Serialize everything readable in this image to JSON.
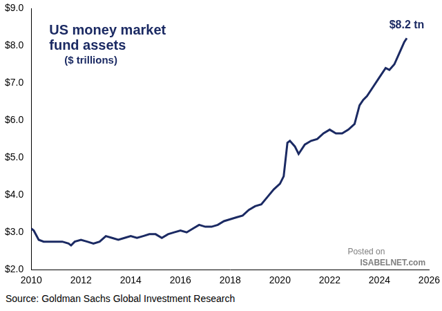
{
  "chart_data": {
    "type": "line",
    "title": "US money market fund assets",
    "subtitle": "($ trillions)",
    "annotations": [
      {
        "text": "$8.2 tn"
      }
    ],
    "watermark": [
      "Posted on",
      "ISABELNET.com"
    ],
    "source": "Source: Goldman Sachs Global Investment Research",
    "color": "#1b2a63",
    "grid": false,
    "x": [
      2010.0,
      2010.1,
      2010.3,
      2010.5,
      2010.75,
      2011.0,
      2011.25,
      2011.5,
      2011.6,
      2011.75,
      2012.0,
      2012.25,
      2012.5,
      2012.75,
      2013.0,
      2013.25,
      2013.5,
      2013.75,
      2014.0,
      2014.25,
      2014.5,
      2014.75,
      2015.0,
      2015.25,
      2015.5,
      2015.75,
      2016.0,
      2016.25,
      2016.5,
      2016.75,
      2017.0,
      2017.25,
      2017.5,
      2017.75,
      2018.0,
      2018.25,
      2018.5,
      2018.75,
      2019.0,
      2019.25,
      2019.5,
      2019.75,
      2020.0,
      2020.15,
      2020.3,
      2020.4,
      2020.6,
      2020.75,
      2021.0,
      2021.25,
      2021.5,
      2021.75,
      2022.0,
      2022.25,
      2022.5,
      2022.75,
      2023.0,
      2023.2,
      2023.35,
      2023.5,
      2023.75,
      2024.0,
      2024.25,
      2024.4,
      2024.6,
      2024.8,
      2025.0,
      2025.1
    ],
    "values": [
      3.1,
      3.05,
      2.8,
      2.75,
      2.75,
      2.75,
      2.75,
      2.7,
      2.65,
      2.75,
      2.8,
      2.75,
      2.7,
      2.75,
      2.9,
      2.85,
      2.8,
      2.85,
      2.9,
      2.85,
      2.9,
      2.95,
      2.95,
      2.85,
      2.95,
      3.0,
      3.05,
      3.0,
      3.1,
      3.2,
      3.15,
      3.15,
      3.2,
      3.3,
      3.35,
      3.4,
      3.45,
      3.6,
      3.7,
      3.75,
      3.95,
      4.15,
      4.3,
      4.5,
      5.4,
      5.45,
      5.3,
      5.1,
      5.35,
      5.45,
      5.5,
      5.65,
      5.75,
      5.65,
      5.65,
      5.75,
      5.9,
      6.4,
      6.55,
      6.65,
      6.9,
      7.15,
      7.4,
      7.35,
      7.5,
      7.8,
      8.1,
      8.2
    ],
    "xlim": [
      2010,
      2026
    ],
    "xticks": [
      2010,
      2012,
      2014,
      2016,
      2018,
      2020,
      2022,
      2024,
      2026
    ],
    "ylim": [
      2,
      9
    ],
    "yticks": [
      {
        "value": 2,
        "label": "$2.0"
      },
      {
        "value": 3,
        "label": "$3.0"
      },
      {
        "value": 4,
        "label": "$4.0"
      },
      {
        "value": 5,
        "label": "$5.0"
      },
      {
        "value": 6,
        "label": "$6.0"
      },
      {
        "value": 7,
        "label": "$7.0"
      },
      {
        "value": 8,
        "label": "$8.0"
      },
      {
        "value": 9,
        "label": "$9.0"
      }
    ]
  }
}
